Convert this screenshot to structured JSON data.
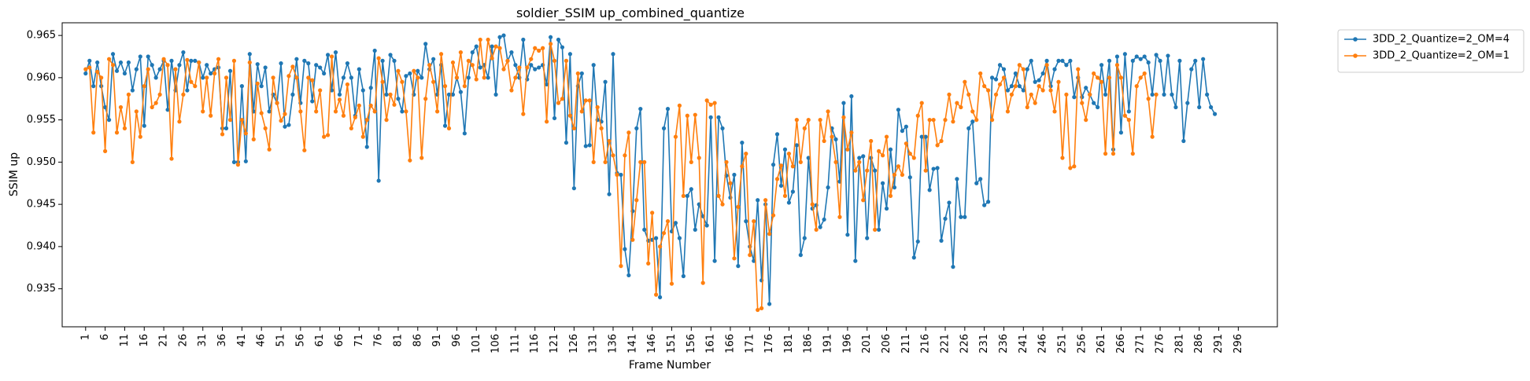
{
  "chart_data": {
    "type": "line",
    "title": "soldier_SSIM up_combined_quantize",
    "xlabel": "Frame Number",
    "ylabel": "SSIM up",
    "ylim": [
      0.9305,
      0.9665
    ],
    "xlim": [
      -5,
      306
    ],
    "grid": false,
    "legend_position": "outside-top-right",
    "x_ticks": [
      1,
      6,
      11,
      16,
      21,
      26,
      31,
      36,
      41,
      46,
      51,
      56,
      61,
      66,
      71,
      76,
      81,
      86,
      91,
      96,
      101,
      106,
      111,
      116,
      121,
      126,
      131,
      136,
      141,
      146,
      151,
      156,
      161,
      166,
      171,
      176,
      181,
      186,
      191,
      196,
      201,
      206,
      211,
      216,
      221,
      226,
      231,
      236,
      241,
      246,
      251,
      256,
      261,
      266,
      271,
      276,
      281,
      286,
      291,
      296
    ],
    "y_ticks": [
      0.935,
      0.94,
      0.945,
      0.95,
      0.955,
      0.96,
      0.965
    ],
    "y_tick_labels": [
      "0.935",
      "0.940",
      "0.945",
      "0.950",
      "0.955",
      "0.960",
      "0.965"
    ],
    "x_start": 1,
    "series": [
      {
        "name": "3DD_2_Quantize=2_OM=4",
        "color": "#1f77b4",
        "marker": "circle",
        "values": [
          0.9605,
          0.962,
          0.959,
          0.9618,
          0.959,
          0.9565,
          0.955,
          0.9628,
          0.9608,
          0.9618,
          0.9605,
          0.9618,
          0.9585,
          0.961,
          0.9625,
          0.9543,
          0.9625,
          0.9615,
          0.96,
          0.961,
          0.962,
          0.9562,
          0.962,
          0.9585,
          0.9615,
          0.963,
          0.9585,
          0.962,
          0.962,
          0.9618,
          0.96,
          0.9615,
          0.9605,
          0.961,
          0.9612,
          0.954,
          0.954,
          0.9608,
          0.95,
          0.95,
          0.959,
          0.9501,
          0.9628,
          0.956,
          0.9616,
          0.959,
          0.9612,
          0.956,
          0.958,
          0.957,
          0.9617,
          0.9542,
          0.9544,
          0.958,
          0.9622,
          0.957,
          0.962,
          0.9617,
          0.9572,
          0.9615,
          0.9612,
          0.9605,
          0.9627,
          0.9585,
          0.963,
          0.958,
          0.96,
          0.9617,
          0.96,
          0.9555,
          0.961,
          0.9585,
          0.9518,
          0.9588,
          0.9632,
          0.9478,
          0.962,
          0.958,
          0.9627,
          0.962,
          0.9575,
          0.956,
          0.9602,
          0.9605,
          0.958,
          0.9608,
          0.96,
          0.964,
          0.961,
          0.9622,
          0.958,
          0.9615,
          0.9543,
          0.958,
          0.958,
          0.96,
          0.9583,
          0.9534,
          0.96,
          0.963,
          0.9637,
          0.9612,
          0.9615,
          0.96,
          0.9637,
          0.958,
          0.9648,
          0.965,
          0.962,
          0.963,
          0.9615,
          0.96,
          0.9645,
          0.9598,
          0.9615,
          0.961,
          0.9612,
          0.9615,
          0.9592,
          0.9648,
          0.9552,
          0.9645,
          0.9636,
          0.9523,
          0.9628,
          0.9469,
          0.959,
          0.9605,
          0.9519,
          0.952,
          0.9615,
          0.955,
          0.9548,
          0.9595,
          0.9462,
          0.9628,
          0.9487,
          0.9485,
          0.9397,
          0.9366,
          0.9442,
          0.954,
          0.9563,
          0.942,
          0.9407,
          0.9408,
          0.941,
          0.934,
          0.954,
          0.9563,
          0.9418,
          0.9428,
          0.941,
          0.9365,
          0.946,
          0.9468,
          0.942,
          0.945,
          0.9436,
          0.9425,
          0.9553,
          0.9383,
          0.9553,
          0.954,
          0.9484,
          0.9458,
          0.9485,
          0.9377,
          0.9523,
          0.943,
          0.94,
          0.9383,
          0.9455,
          0.936,
          0.945,
          0.9332,
          0.9497,
          0.9533,
          0.9472,
          0.9515,
          0.9452,
          0.9465,
          0.952,
          0.939,
          0.941,
          0.9505,
          0.9445,
          0.9449,
          0.9423,
          0.9432,
          0.947,
          0.954,
          0.9527,
          0.9477,
          0.957,
          0.9414,
          0.9578,
          0.9383,
          0.9505,
          0.9507,
          0.941,
          0.9505,
          0.949,
          0.942,
          0.9475,
          0.9445,
          0.9515,
          0.947,
          0.9562,
          0.9537,
          0.9542,
          0.9482,
          0.9387,
          0.9406,
          0.953,
          0.953,
          0.9467,
          0.9492,
          0.9493,
          0.9407,
          0.9433,
          0.9452,
          0.9376,
          0.948,
          0.9435,
          0.9435,
          0.954,
          0.9548,
          0.9475,
          0.948,
          0.9449,
          0.9453,
          0.96,
          0.9598,
          0.9615,
          0.961,
          0.9585,
          0.959,
          0.9605,
          0.959,
          0.9585,
          0.961,
          0.962,
          0.9595,
          0.9597,
          0.9605,
          0.962,
          0.959,
          0.961,
          0.962,
          0.962,
          0.9615,
          0.962,
          0.9577,
          0.96,
          0.9577,
          0.9588,
          0.958,
          0.957,
          0.9565,
          0.9615,
          0.958,
          0.962,
          0.9515,
          0.9625,
          0.9535,
          0.9628,
          0.956,
          0.962,
          0.9625,
          0.9622,
          0.9625,
          0.9618,
          0.958,
          0.9627,
          0.962,
          0.958,
          0.9626,
          0.958,
          0.9565,
          0.962,
          0.9525,
          0.957,
          0.961,
          0.962,
          0.9565,
          0.9622,
          0.958,
          0.9565,
          0.9557
        ]
      },
      {
        "name": "3DD_2_Quantize=2_OM=1",
        "color": "#ff7f0e",
        "marker": "circle",
        "values": [
          0.961,
          0.9612,
          0.9535,
          0.9607,
          0.96,
          0.9513,
          0.9622,
          0.9615,
          0.9535,
          0.9565,
          0.954,
          0.958,
          0.95,
          0.956,
          0.953,
          0.959,
          0.961,
          0.9565,
          0.957,
          0.958,
          0.9622,
          0.9615,
          0.9504,
          0.961,
          0.9548,
          0.958,
          0.9621,
          0.9595,
          0.959,
          0.9618,
          0.956,
          0.96,
          0.9555,
          0.9605,
          0.9622,
          0.9533,
          0.96,
          0.955,
          0.962,
          0.9497,
          0.955,
          0.9534,
          0.9618,
          0.9527,
          0.9593,
          0.9558,
          0.954,
          0.9515,
          0.96,
          0.957,
          0.9549,
          0.9557,
          0.9602,
          0.9613,
          0.96,
          0.956,
          0.9514,
          0.96,
          0.9597,
          0.956,
          0.9585,
          0.953,
          0.9532,
          0.9625,
          0.956,
          0.9574,
          0.9555,
          0.9592,
          0.954,
          0.9553,
          0.9567,
          0.953,
          0.955,
          0.9567,
          0.956,
          0.9623,
          0.9595,
          0.955,
          0.958,
          0.9568,
          0.9608,
          0.9595,
          0.956,
          0.9502,
          0.9608,
          0.96,
          0.9505,
          0.9575,
          0.9615,
          0.9595,
          0.956,
          0.9628,
          0.959,
          0.954,
          0.9618,
          0.96,
          0.963,
          0.959,
          0.962,
          0.9615,
          0.9598,
          0.9645,
          0.96,
          0.9645,
          0.9623,
          0.9637,
          0.9635,
          0.961,
          0.962,
          0.9585,
          0.96,
          0.9612,
          0.9557,
          0.9612,
          0.9622,
          0.9635,
          0.9632,
          0.9635,
          0.9548,
          0.964,
          0.962,
          0.957,
          0.9575,
          0.962,
          0.9555,
          0.954,
          0.9605,
          0.956,
          0.9573,
          0.9573,
          0.95,
          0.9565,
          0.954,
          0.95,
          0.9525,
          0.9508,
          0.9485,
          0.9377,
          0.9508,
          0.9535,
          0.9408,
          0.9455,
          0.95,
          0.95,
          0.938,
          0.944,
          0.9343,
          0.94,
          0.9416,
          0.943,
          0.9356,
          0.953,
          0.9567,
          0.946,
          0.9555,
          0.95,
          0.9556,
          0.9505,
          0.9357,
          0.9573,
          0.9568,
          0.957,
          0.946,
          0.945,
          0.95,
          0.9475,
          0.9386,
          0.9447,
          0.9495,
          0.951,
          0.939,
          0.943,
          0.9325,
          0.9327,
          0.9455,
          0.9415,
          0.9437,
          0.948,
          0.9496,
          0.946,
          0.951,
          0.9495,
          0.955,
          0.95,
          0.954,
          0.955,
          0.945,
          0.942,
          0.955,
          0.9525,
          0.956,
          0.953,
          0.95,
          0.9435,
          0.9553,
          0.9515,
          0.9535,
          0.949,
          0.95,
          0.9455,
          0.949,
          0.9525,
          0.942,
          0.9513,
          0.9508,
          0.953,
          0.946,
          0.9485,
          0.9495,
          0.9485,
          0.9522,
          0.951,
          0.9505,
          0.9555,
          0.957,
          0.949,
          0.955,
          0.955,
          0.952,
          0.9525,
          0.955,
          0.958,
          0.9548,
          0.957,
          0.9565,
          0.9595,
          0.958,
          0.956,
          0.955,
          0.9605,
          0.959,
          0.9585,
          0.955,
          0.958,
          0.9592,
          0.96,
          0.956,
          0.958,
          0.959,
          0.9615,
          0.961,
          0.9565,
          0.958,
          0.957,
          0.959,
          0.9585,
          0.9615,
          0.9585,
          0.956,
          0.9595,
          0.9505,
          0.958,
          0.9493,
          0.9495,
          0.961,
          0.957,
          0.955,
          0.958,
          0.9605,
          0.96,
          0.9595,
          0.951,
          0.96,
          0.951,
          0.9615,
          0.96,
          0.9555,
          0.955,
          0.951,
          0.959,
          0.96,
          0.9605,
          0.9575,
          0.953,
          0.958
        ]
      }
    ]
  }
}
